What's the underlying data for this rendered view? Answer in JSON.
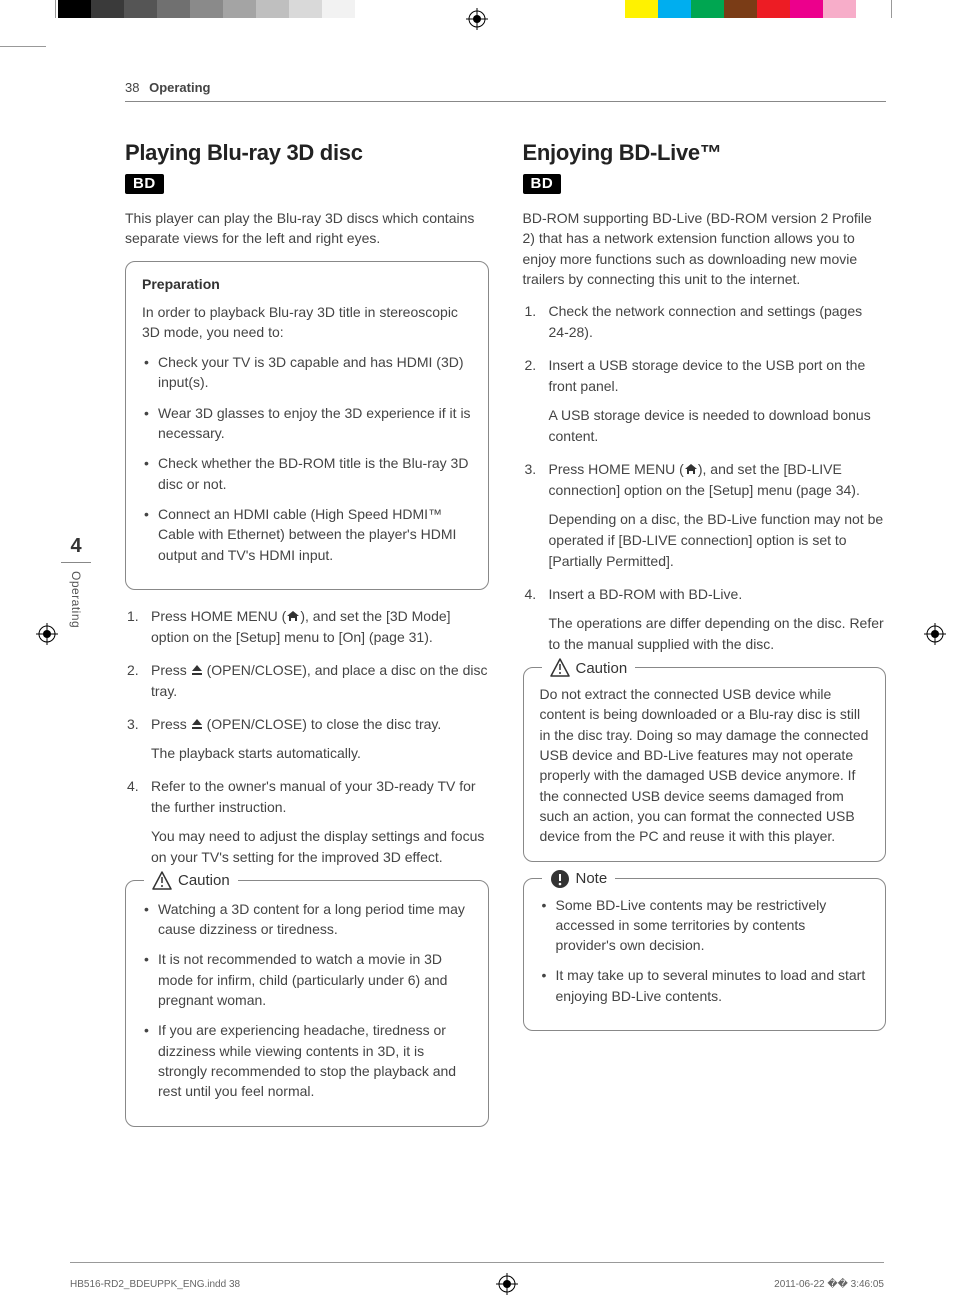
{
  "colorbar_left": [
    "#000000",
    "#3a3a3a",
    "#555555",
    "#707070",
    "#8a8a8a",
    "#a4a4a4",
    "#bfbfbf",
    "#d9d9d9",
    "#f2f2f2",
    "#ffffff"
  ],
  "colorbar_right": [
    "#fff200",
    "#00aeef",
    "#00a651",
    "#7A3C16",
    "#ed1c24",
    "#ec008c",
    "#f7adc9",
    "#ffffff"
  ],
  "header": {
    "page_number": "38",
    "section": "Operating"
  },
  "side_tab": {
    "chapter_number": "4",
    "label": "Operating"
  },
  "left": {
    "title": "Playing Blu-ray 3D disc",
    "badge": "BD",
    "intro": "This player can play the Blu-ray 3D discs which contains separate views for the left and right eyes.",
    "prep_heading": "Preparation",
    "prep_lead": "In order to playback Blu-ray 3D title in stereoscopic 3D mode, you need to:",
    "prep_items": [
      "Check your TV is 3D capable and has HDMI (3D) input(s).",
      "Wear 3D glasses to enjoy the 3D experience if it is necessary.",
      "Check whether the BD-ROM title is the Blu-ray 3D disc or not.",
      "Connect an HDMI cable (High Speed HDMI™ Cable with Ethernet) between the player's HDMI output and TV's HDMI input."
    ],
    "steps": [
      {
        "pre": "Press HOME MENU (",
        "post": "), and set the [3D Mode] option on the [Setup] menu to [On] (page 31).",
        "icon": "home"
      },
      {
        "pre": "Press ",
        "post": " (OPEN/CLOSE), and place a disc on the disc tray.",
        "icon": "eject"
      },
      {
        "pre": "Press ",
        "post": " (OPEN/CLOSE) to close the disc tray.",
        "icon": "eject",
        "sub": "The playback starts automatically."
      },
      {
        "pre": "Refer to the owner's manual of your 3D-ready TV for the further instruction.",
        "post": "",
        "icon": null,
        "sub": "You may need to adjust the display settings and focus on your TV's setting for the improved 3D effect."
      }
    ],
    "caution_label": "Caution",
    "caution_items": [
      "Watching a 3D content for a long period time may cause dizziness or tiredness.",
      "It is not recommended to watch a movie in 3D mode for infirm, child (particularly under 6) and pregnant woman.",
      "If you are experiencing headache, tiredness or dizziness while viewing contents in 3D, it is strongly recommended to stop the playback and rest until you feel normal."
    ]
  },
  "right": {
    "title": "Enjoying BD-Live™",
    "badge": "BD",
    "intro": "BD-ROM supporting BD-Live (BD-ROM version 2 Profile 2) that has a network extension function allows you to enjoy more functions such as downloading new movie trailers by connecting this unit to the internet.",
    "steps": [
      {
        "text": "Check the network connection and settings (pages 24-28)."
      },
      {
        "text": "Insert a USB storage device to the USB port on the front panel.",
        "sub": "A USB storage device is needed to download bonus content."
      },
      {
        "pre": "Press HOME MENU (",
        "post": "), and set the [BD-LIVE connection] option on the [Setup] menu (page 34).",
        "icon": "home",
        "sub": "Depending on a disc, the BD-Live function may not be operated if [BD-LIVE connection] option is set to [Partially Permitted]."
      },
      {
        "text": "Insert a BD-ROM with BD-Live.",
        "sub": "The operations are differ depending on the disc. Refer to the manual supplied with the disc."
      }
    ],
    "caution_label": "Caution",
    "caution_text": "Do not extract the connected USB device while content is being downloaded or a Blu-ray disc is still in the disc tray. Doing so may damage the connected USB device and BD-Live features may not operate properly with the damaged USB device anymore. If the connected USB device seems damaged from such an action, you can format the connected USB device from the PC and reuse it with this player.",
    "note_label": "Note",
    "note_items": [
      "Some BD-Live contents may be restrictively accessed in some territories by contents provider's own decision.",
      "It may take up to several minutes to load and start enjoying BD-Live contents."
    ]
  },
  "footer": {
    "file": "HB516-RD2_BDEUPPK_ENG.indd   38",
    "date": "2011-06-22   �� 3:46:05"
  }
}
